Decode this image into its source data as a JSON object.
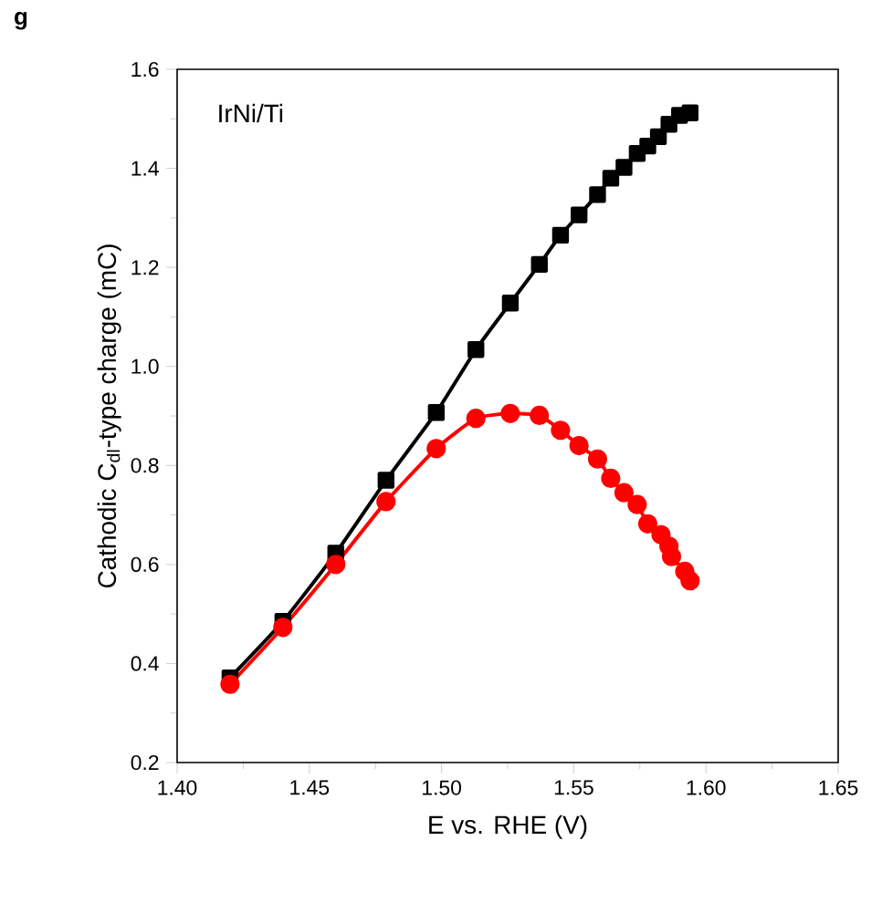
{
  "chart_data": {
    "type": "line",
    "xlabel": "E vs. RHE (V)",
    "ylabel": "Cathodic C$_{dl}$-type charge (mC)",
    "annotations": [
      "g",
      "IrNi/Ti"
    ],
    "xlim": [
      1.4,
      1.65
    ],
    "ylim": [
      0.2,
      1.6
    ],
    "xticks": [
      {
        "value": 1.4,
        "label": "1.40"
      },
      {
        "value": 1.45,
        "label": "1.45"
      },
      {
        "value": 1.5,
        "label": "1.50"
      },
      {
        "value": 1.55,
        "label": "1.55"
      },
      {
        "value": 1.6,
        "label": "1.60"
      },
      {
        "value": 1.65,
        "label": "1.65"
      }
    ],
    "yticks": [
      0.2,
      0.4,
      0.6,
      0.8,
      {
        "value": 1.0,
        "label": "1.0"
      },
      1.2,
      1.4,
      1.6
    ],
    "grid": false,
    "line_style": "solid",
    "series": [
      {
        "color": "#000000",
        "marker": "square",
        "x": [
          1.42,
          1.44,
          1.46,
          1.479,
          1.498,
          1.513,
          1.526,
          1.537,
          1.545,
          1.552,
          1.559,
          1.564,
          1.569,
          1.574,
          1.578,
          1.582,
          1.586,
          1.59,
          1.594
        ],
        "values": [
          0.371,
          0.485,
          0.623,
          0.77,
          0.907,
          1.034,
          1.128,
          1.206,
          1.265,
          1.306,
          1.347,
          1.38,
          1.402,
          1.43,
          1.445,
          1.464,
          1.489,
          1.507,
          1.512
        ]
      },
      {
        "color": "#ff0000",
        "marker": "circle",
        "x": [
          1.42,
          1.44,
          1.46,
          1.479,
          1.498,
          1.513,
          1.526,
          1.537,
          1.545,
          1.552,
          1.559,
          1.564,
          1.569,
          1.574,
          1.578,
          1.583,
          1.586,
          1.587,
          1.592,
          1.594
        ],
        "values": [
          0.358,
          0.473,
          0.6,
          0.727,
          0.834,
          0.895,
          0.905,
          0.901,
          0.871,
          0.84,
          0.813,
          0.774,
          0.745,
          0.721,
          0.682,
          0.66,
          0.637,
          0.616,
          0.586,
          0.567
        ]
      }
    ]
  }
}
